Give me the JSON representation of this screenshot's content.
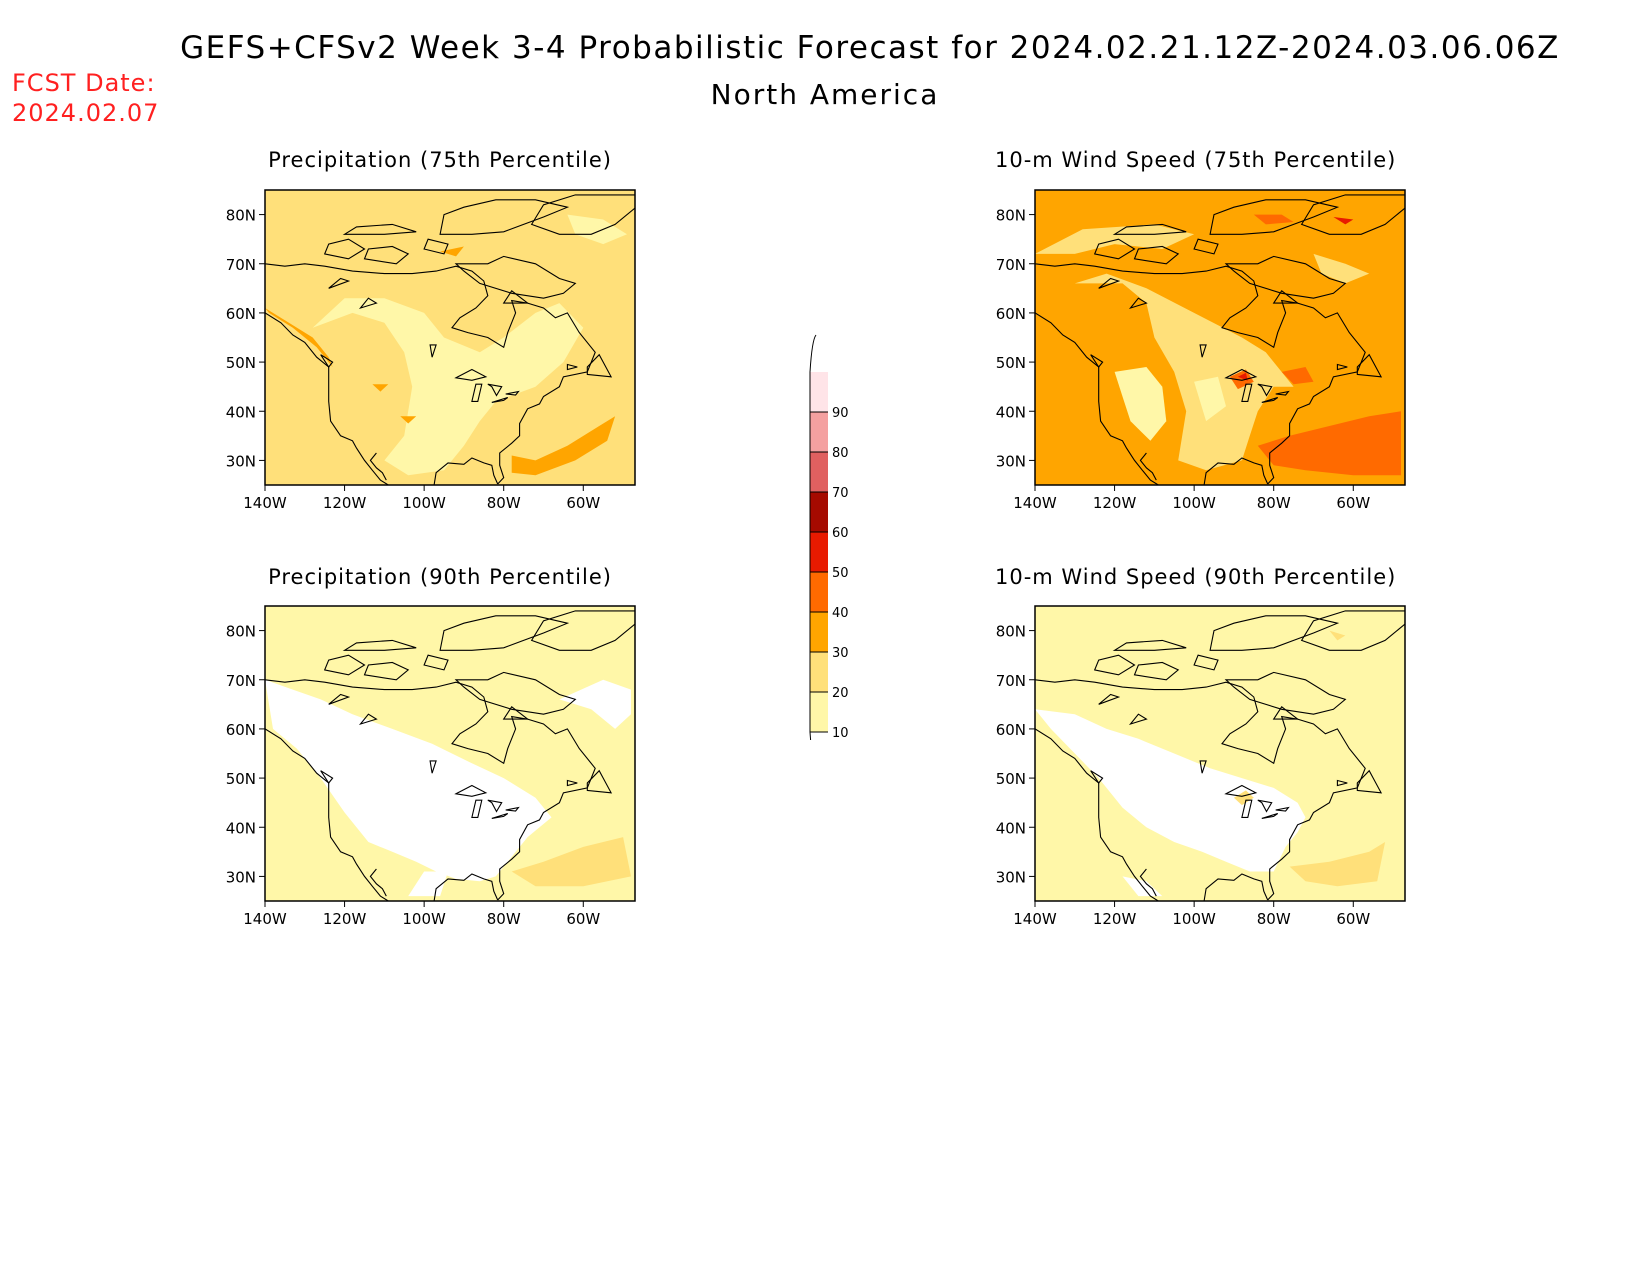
{
  "header": {
    "title": "GEFS+CFSv2 Week 3-4 Probabilistic Forecast for 2024.02.21.12Z-2024.03.06.06Z",
    "region": "North America",
    "fcst_label": "FCST Date:",
    "fcst_date": "2024.02.07"
  },
  "axes": {
    "lat_ticks": [
      "80N",
      "70N",
      "60N",
      "50N",
      "40N",
      "30N"
    ],
    "lon_ticks": [
      "140W",
      "120W",
      "100W",
      "80W",
      "60W"
    ]
  },
  "panels": [
    {
      "title": "Precipitation (75th Percentile)",
      "variable": "precipitation",
      "percentile": 75
    },
    {
      "title": "10-m Wind Speed (75th Percentile)",
      "variable": "wind",
      "percentile": 75
    },
    {
      "title": "Precipitation (90th Percentile)",
      "variable": "precipitation",
      "percentile": 90
    },
    {
      "title": "10-m Wind Speed (90th Percentile)",
      "variable": "wind",
      "percentile": 90
    }
  ],
  "colorbar": {
    "levels": [
      "10",
      "20",
      "30",
      "40",
      "50",
      "60",
      "70",
      "80",
      "90"
    ],
    "colors": [
      "#fff7a8",
      "#ffe07a",
      "#ffa500",
      "#ff6a00",
      "#e81a00",
      "#a50a00",
      "#e06060",
      "#f4a0a0",
      "#ffe4e8"
    ]
  }
}
